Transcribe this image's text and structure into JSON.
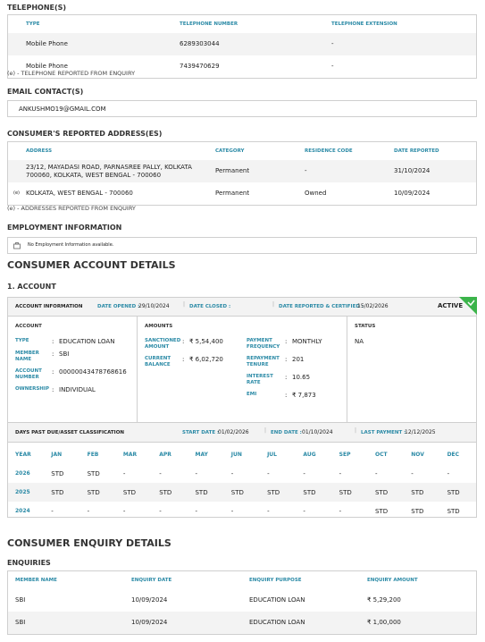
{
  "telephones": {
    "title": "TELEPHONE(S)",
    "headers": [
      "TYPE",
      "TELEPHONE NUMBER",
      "TELEPHONE EXTENSION"
    ],
    "rows": [
      [
        "Mobile Phone",
        "6289303044",
        "-"
      ],
      [
        "Mobile Phone",
        "7439470629",
        "-"
      ]
    ],
    "note": "(e) - TELEPHONE REPORTED FROM ENQUIRY"
  },
  "email": {
    "title": "EMAIL CONTACT(S)",
    "value": "ANKUSHMO19@GMAIL.COM"
  },
  "addresses": {
    "title": "CONSUMER'S REPORTED ADDRESS(ES)",
    "headers": [
      "ADDRESS",
      "CATEGORY",
      "RESIDENCE CODE",
      "DATE REPORTED"
    ],
    "rows": [
      {
        "cells": [
          "23/12, MAYADASI ROAD, PARNASREE PALLY, KOLKATA 700060, KOLKATA, WEST BENGAL - 700060",
          "Permanent",
          "-",
          "31/10/2024"
        ]
      },
      {
        "marker": "(e)",
        "cells": [
          "KOLKATA, WEST BENGAL - 700060",
          "Permanent",
          "Owned",
          "10/09/2024"
        ]
      }
    ],
    "note": "(e) - ADDRESSES REPORTED FROM ENQUIRY"
  },
  "employment": {
    "title": "EMPLOYMENT INFORMATION",
    "message": "No Employment Information available."
  },
  "account_details": {
    "title": "CONSUMER ACCOUNT DETAILS",
    "subtitle": "1. ACCOUNT",
    "header": {
      "title": "ACCOUNT INFORMATION",
      "date_opened_label": "DATE OPENED :",
      "date_opened": "29/10/2024",
      "date_closed_label": "DATE CLOSED :",
      "date_reported_label": "DATE REPORTED & CERTIFIED :",
      "date_reported": "15/02/2026",
      "status": "ACTIVE"
    },
    "separator": ":",
    "account": {
      "title": "ACCOUNT",
      "fields": [
        {
          "label": "TYPE",
          "value": "EDUCATION LOAN"
        },
        {
          "label": "MEMBER NAME",
          "value": "SBI"
        },
        {
          "label": "ACCOUNT NUMBER",
          "value": "00000043478768616"
        },
        {
          "label": "OWNERSHIP",
          "value": "INDIVIDUAL"
        }
      ]
    },
    "amounts": {
      "title": "AMOUNTS",
      "fields_left": [
        {
          "label": "SANCTIONED AMOUNT",
          "value": "₹ 5,54,400"
        },
        {
          "label": "CURRENT BALANCE",
          "value": "₹ 6,02,720"
        }
      ],
      "fields_right": [
        {
          "label": "PAYMENT FREQUENCY",
          "value": "MONTHLY"
        },
        {
          "label": "REPAYMENT TENURE",
          "value": "201"
        },
        {
          "label": "INTEREST RATE",
          "value": "10.65"
        },
        {
          "label": "EMI",
          "value": "₹ 7,873"
        }
      ]
    },
    "status": {
      "title": "STATUS",
      "value": "NA"
    },
    "dpd": {
      "title": "DAYS PAST DUE/ASSET CLASSIFICATION",
      "start_label": "START DATE :",
      "start": "01/02/2026",
      "end_label": "END DATE :",
      "end": "01/10/2024",
      "last_label": "LAST PAYMENT :",
      "last": "12/12/2025",
      "headers": [
        "YEAR",
        "JAN",
        "FEB",
        "MAR",
        "APR",
        "MAY",
        "JUN",
        "JUL",
        "AUG",
        "SEP",
        "OCT",
        "NOV",
        "DEC"
      ],
      "rows": [
        [
          "2026",
          "STD",
          "STD",
          "-",
          "-",
          "-",
          "-",
          "-",
          "-",
          "-",
          "-",
          "-",
          "-"
        ],
        [
          "2025",
          "STD",
          "STD",
          "STD",
          "STD",
          "STD",
          "STD",
          "STD",
          "STD",
          "STD",
          "STD",
          "STD",
          "STD"
        ],
        [
          "2024",
          "-",
          "-",
          "-",
          "-",
          "-",
          "-",
          "-",
          "-",
          "-",
          "STD",
          "STD",
          "STD"
        ]
      ]
    }
  },
  "enquiry_details": {
    "title": "CONSUMER ENQUIRY DETAILS",
    "subtitle": "ENQUIRIES",
    "headers": [
      "MEMBER NAME",
      "ENQUIRY DATE",
      "ENQUIRY PURPOSE",
      "ENQUIRY AMOUNT"
    ],
    "rows": [
      [
        "SBI",
        "10/09/2024",
        "EDUCATION LOAN",
        "₹ 5,29,200"
      ],
      [
        "SBI",
        "10/09/2024",
        "EDUCATION LOAN",
        "₹ 1,00,000"
      ]
    ]
  }
}
